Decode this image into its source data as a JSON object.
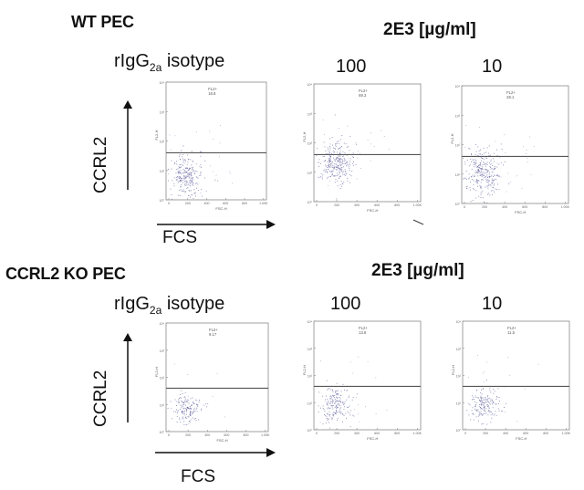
{
  "sections": [
    {
      "title": "WT PEC",
      "conc_header": "2E3 [µg/ml]",
      "isotype_prefix": "rIgG",
      "isotype_sub": "2a",
      "isotype_suffix": " isotype",
      "y_axis_label": "CCRL2",
      "x_axis_label": "FCS",
      "columns": [
        "100",
        "10"
      ]
    },
    {
      "title": "CCRL2 KO PEC",
      "conc_header": "2E3 [µg/ml]",
      "isotype_prefix": "rIgG",
      "isotype_sub": "2a",
      "isotype_suffix": " isotype",
      "y_axis_label": "CCRL2",
      "x_axis_label": "FCS",
      "columns": [
        "100",
        "10"
      ]
    }
  ],
  "chart_data": [
    {
      "type": "scatter",
      "panel": "WT PEC rIgG2a isotype",
      "gate_label": "FL2+",
      "gate_value": "18.8",
      "ylabel": "FL2-H",
      "xlabel": "FSC-H",
      "dense_y": 0.2,
      "spread": 0.85
    },
    {
      "type": "scatter",
      "panel": "WT PEC 2E3 100",
      "gate_label": "FL2+",
      "gate_value": "69.3",
      "ylabel": "FL2-H",
      "xlabel": "FSC-H",
      "dense_y": 0.33,
      "spread": 1.0
    },
    {
      "type": "scatter",
      "panel": "WT PEC 2E3 10",
      "gate_label": "FL2+",
      "gate_value": "28.1",
      "ylabel": "FL2-H",
      "xlabel": "FSC-H",
      "dense_y": 0.27,
      "spread": 1.0
    },
    {
      "type": "scatter",
      "panel": "CCRL2 KO PEC rIgG2a isotype",
      "gate_label": "FL2+",
      "gate_value": "9.17",
      "ylabel": "FL2-H",
      "xlabel": "FSC-H",
      "dense_y": 0.22,
      "spread": 0.4
    },
    {
      "type": "scatter",
      "panel": "CCRL2 KO PEC 2E3 100",
      "gate_label": "FL2+",
      "gate_value": "13.8",
      "ylabel": "FL2-H",
      "xlabel": "FSC-H",
      "dense_y": 0.23,
      "spread": 0.55
    },
    {
      "type": "scatter",
      "panel": "CCRL2 KO PEC 2E3 10",
      "gate_label": "FL2+",
      "gate_value": "11.5",
      "ylabel": "FL2-H",
      "xlabel": "FSC-H",
      "dense_y": 0.22,
      "spread": 0.5
    }
  ],
  "colors": {
    "dots": "#5a5a9a",
    "gate": "#555555",
    "frame": "#8a8a8a"
  }
}
